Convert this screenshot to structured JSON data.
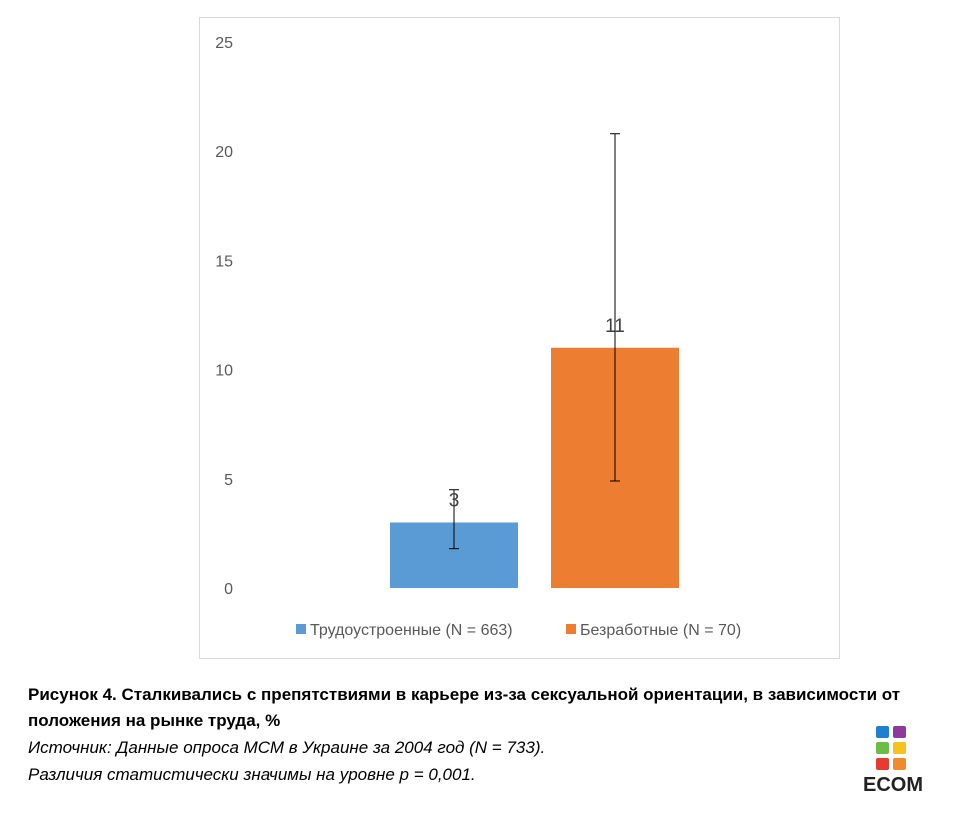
{
  "chart_data": {
    "type": "bar",
    "categories": [
      ""
    ],
    "series": [
      {
        "name": "Трудоустроенные (N = 663)",
        "values": [
          3
        ],
        "error_low": [
          1.8
        ],
        "error_high": [
          4.5
        ],
        "data_labels": [
          "3"
        ],
        "color": "#5b9bd5"
      },
      {
        "name": "Безработные (N = 70)",
        "values": [
          11
        ],
        "error_low": [
          4.9
        ],
        "error_high": [
          20.8
        ],
        "data_labels": [
          "11"
        ],
        "color": "#ed7d31"
      }
    ],
    "title": "",
    "xlabel": "",
    "ylabel": "",
    "ylim": [
      0,
      25
    ],
    "yticks": [
      "0",
      "5",
      "10",
      "15",
      "20",
      "25"
    ],
    "grid": false,
    "legend_position": "bottom"
  },
  "caption": {
    "title": "Рисунок 4. Сталкивались с препятствиями в карьере из-за сексуальной ориентации, в зависимости от положения на рынке труда, %",
    "source": "Источник: Данные опроса МСМ в Украине за 2004 год (N = 733).",
    "note": "Различия статистически значимы на уровне р = 0,001."
  },
  "logo": {
    "text": "ECOM",
    "colors": [
      "#1f7fd0",
      "#8e3a9c",
      "#6cbd45",
      "#f6c21b",
      "#e63b2e",
      "#f08a2b"
    ]
  }
}
